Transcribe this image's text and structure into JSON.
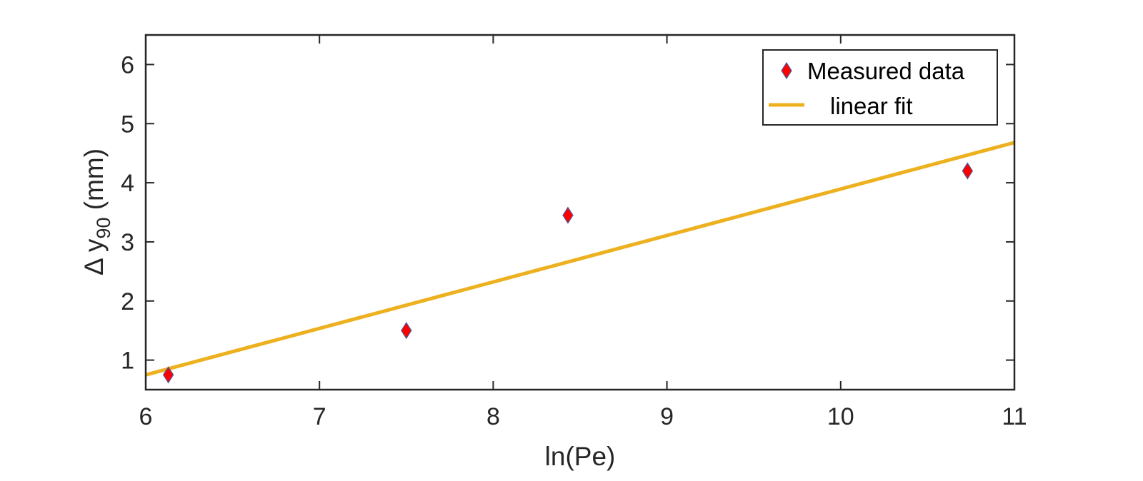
{
  "chart_data": {
    "type": "scatter",
    "xlabel": "ln(Pe)",
    "ylabel": {
      "prefix": "Δ y",
      "subscript": "90",
      "suffix": " (mm)"
    },
    "xlim": [
      6,
      11
    ],
    "ylim": [
      0.5,
      6.5
    ],
    "xticks": [
      6,
      7,
      8,
      9,
      10,
      11
    ],
    "yticks": [
      1,
      2,
      3,
      4,
      5,
      6
    ],
    "grid": false,
    "legend_position": "top-right",
    "series": [
      {
        "name": "Measured data",
        "kind": "scatter",
        "marker": "diamond",
        "color": "#ff0000",
        "edge_color": "#4a5a9a",
        "points": [
          {
            "x": 6.13,
            "y": 0.75
          },
          {
            "x": 7.5,
            "y": 1.5
          },
          {
            "x": 8.43,
            "y": 3.45
          },
          {
            "x": 10.73,
            "y": 4.2
          }
        ]
      },
      {
        "name": "linear fit",
        "kind": "line",
        "color": "#edb120",
        "points": [
          {
            "x": 6,
            "y": 0.75
          },
          {
            "x": 11,
            "y": 4.68
          }
        ]
      }
    ]
  }
}
